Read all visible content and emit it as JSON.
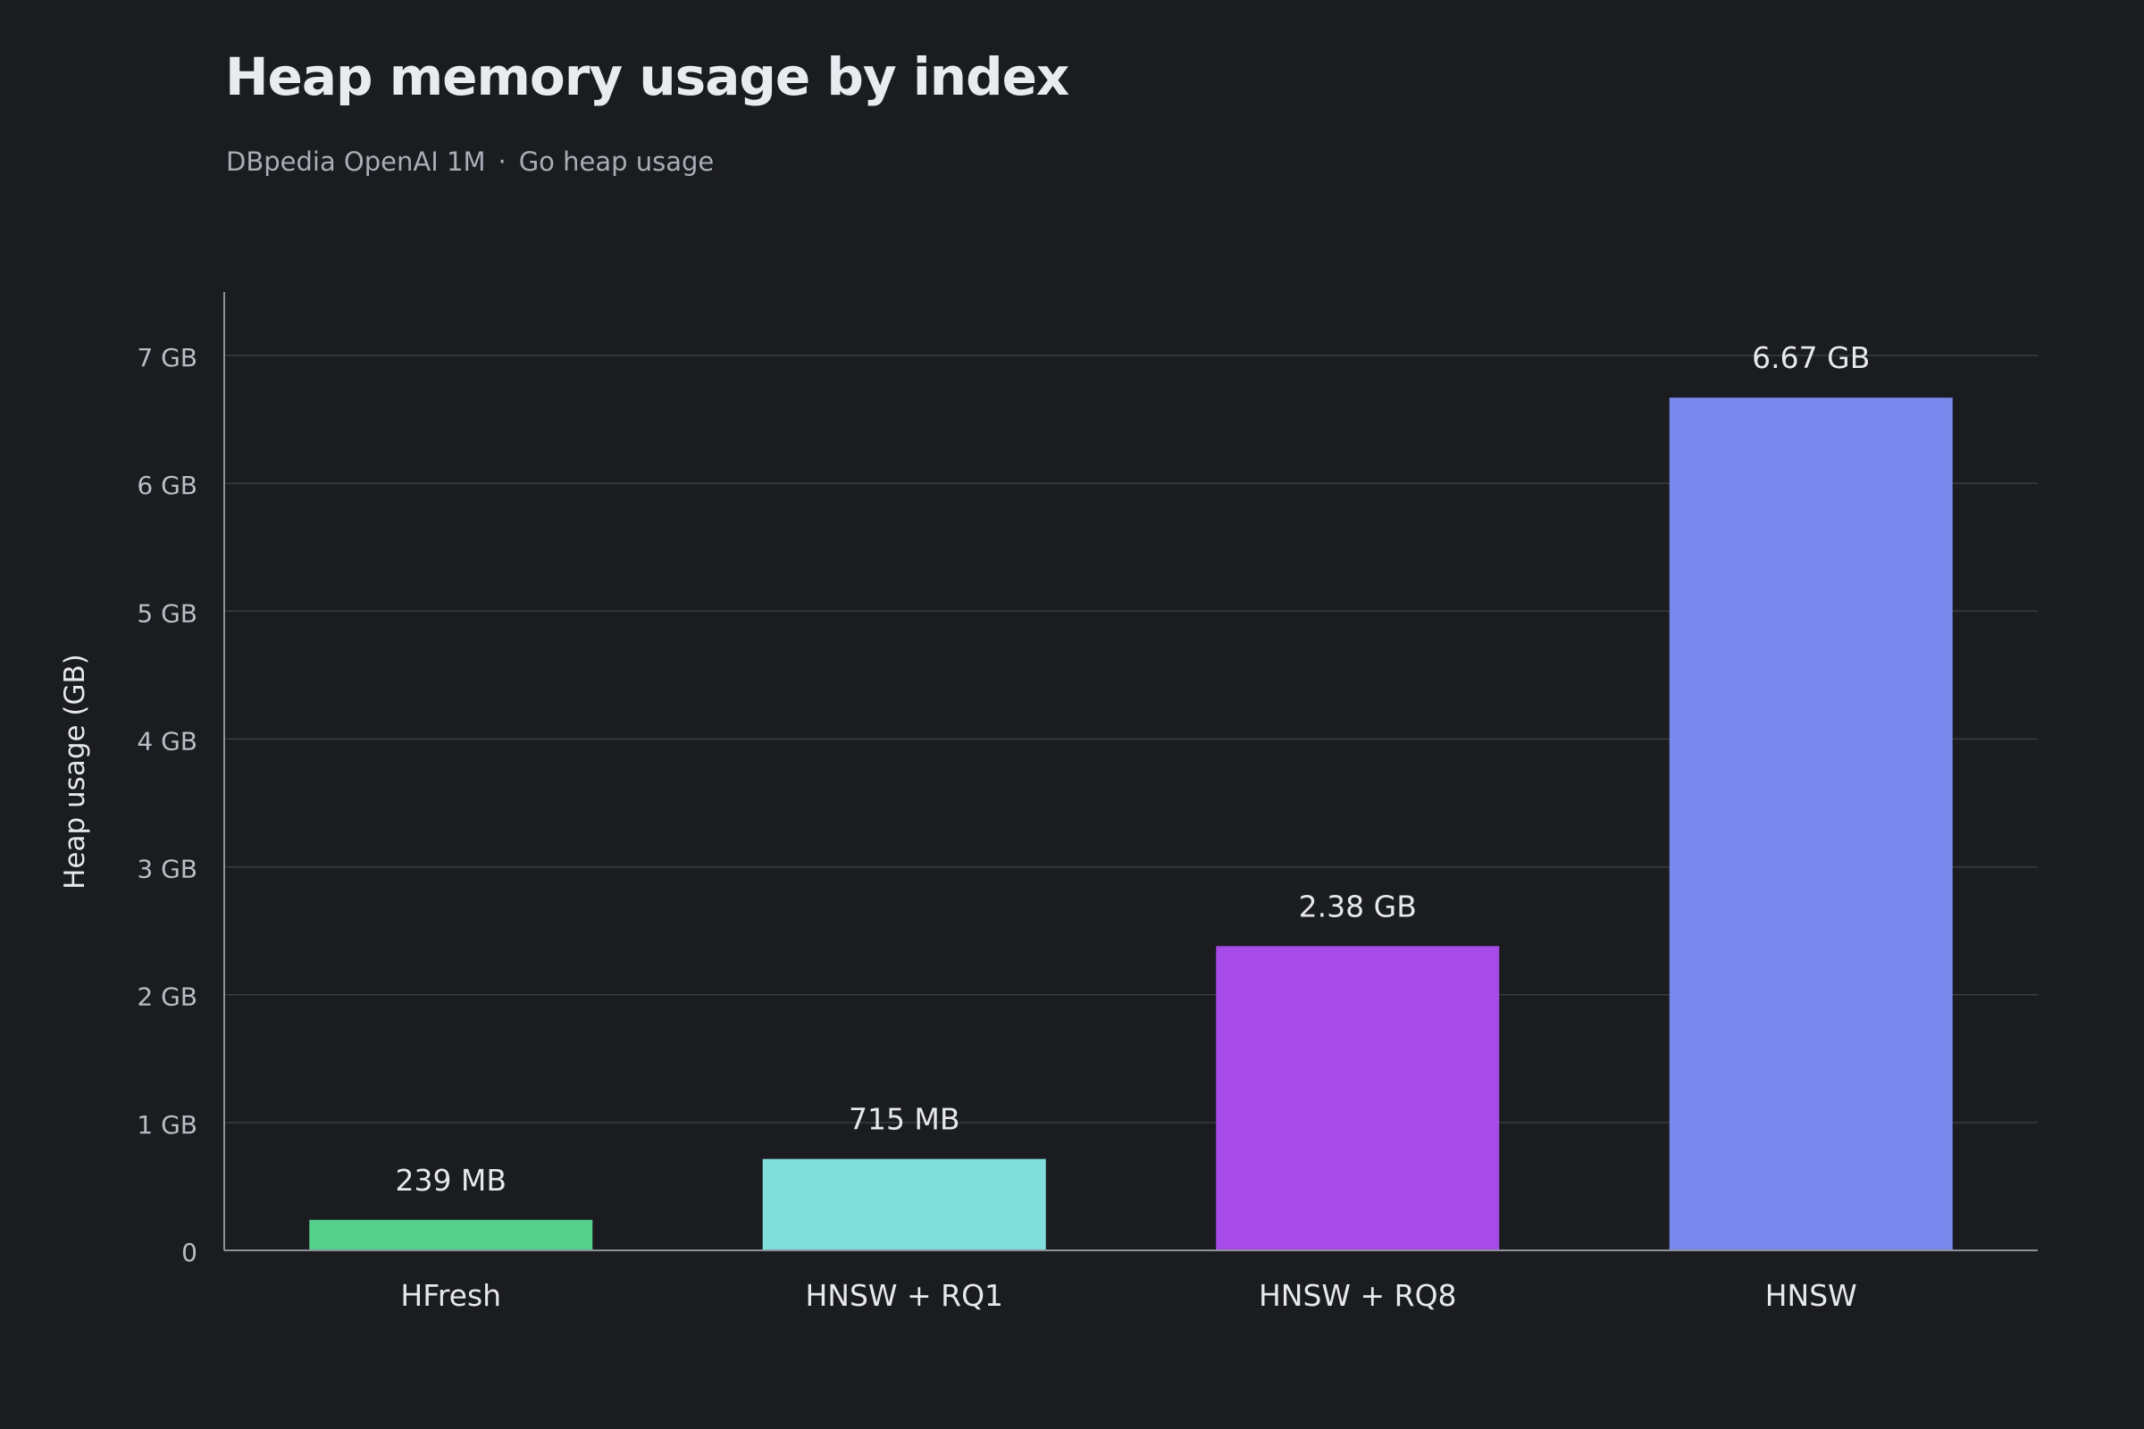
{
  "header": {
    "title": "Heap memory usage by index",
    "subtitle_dataset": "DBpedia OpenAI 1M",
    "subtitle_separator": "·",
    "subtitle_metric": "Go heap usage"
  },
  "chart_data": {
    "type": "bar",
    "title": "Heap memory usage by index",
    "subtitle": "DBpedia OpenAI 1M · Go heap usage",
    "xlabel": "",
    "ylabel": "Heap usage (GB)",
    "ylim": [
      0,
      7.5
    ],
    "yticks": [
      0,
      1,
      2,
      3,
      4,
      5,
      6,
      7
    ],
    "ytick_labels": [
      "0",
      "1 GB",
      "2 GB",
      "3 GB",
      "4 GB",
      "5 GB",
      "6 GB",
      "7 GB"
    ],
    "categories": [
      "HFresh",
      "HNSW + RQ1",
      "HNSW + RQ8",
      "HNSW"
    ],
    "values": [
      0.239,
      0.715,
      2.38,
      6.67
    ],
    "data_labels": [
      "239 MB",
      "715 MB",
      "2.38 GB",
      "6.67 GB"
    ],
    "bar_colors": [
      "#55cf8c",
      "#80dfdb",
      "#a64ae8",
      "#7888ec"
    ],
    "grid": true,
    "legend": "none",
    "colors": {
      "background": "#1b1c20",
      "gridline": "#3a3c43",
      "axis": "#8e929b"
    }
  }
}
